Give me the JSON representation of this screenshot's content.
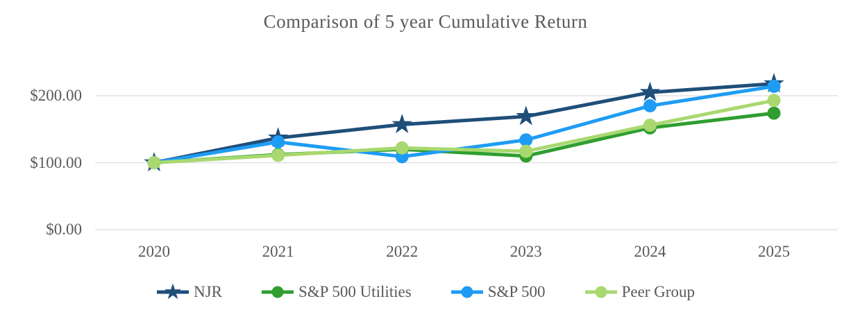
{
  "title": "Comparison of 5 year Cumulative Return",
  "chart_data": {
    "type": "line",
    "title": "Comparison of 5 year Cumulative Return",
    "categories": [
      "2020",
      "2021",
      "2022",
      "2023",
      "2024",
      "2025"
    ],
    "series": [
      {
        "name": "NJR",
        "color": "#1f4e79",
        "marker": "star",
        "values": [
          100.0,
          137,
          157,
          169,
          205,
          218
        ]
      },
      {
        "name": "S&P 500 Utilities",
        "color": "#2f9e2f",
        "marker": "circle",
        "values": [
          100.0,
          112,
          120,
          110,
          152,
          174
        ]
      },
      {
        "name": "S&P 500",
        "color": "#1e9cf4",
        "marker": "circle",
        "values": [
          100.0,
          131,
          109,
          134,
          185,
          214
        ]
      },
      {
        "name": "Peer Group",
        "color": "#a9d870",
        "marker": "circle",
        "values": [
          100.0,
          111,
          122,
          117,
          156,
          193
        ]
      }
    ],
    "y_ticks": [
      {
        "label": "$0.00",
        "value": 0
      },
      {
        "label": "$100.00",
        "value": 100
      },
      {
        "label": "$200.00",
        "value": 200
      }
    ],
    "xlabel": "",
    "ylabel": "",
    "ylim": [
      0,
      200
    ],
    "grid": true,
    "grid_color": "#e2e2e2",
    "legend_position": "bottom",
    "text_color": "#595959",
    "background_color": "#ffffff"
  }
}
